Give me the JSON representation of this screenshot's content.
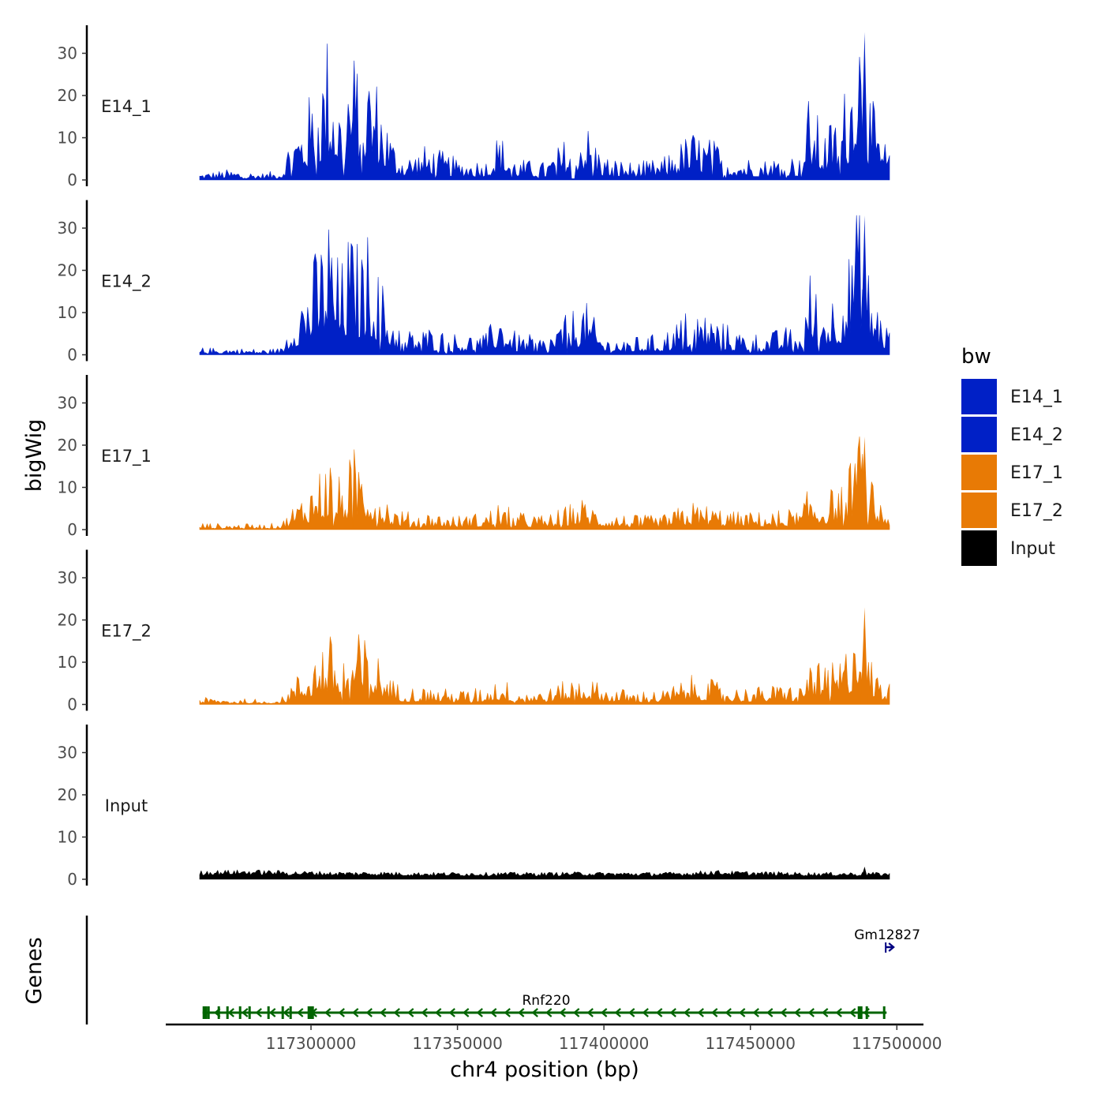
{
  "chart_data": {
    "type": "area",
    "x_axis": {
      "label": "chr4 position (bp)",
      "range": [
        117262000,
        117497500
      ],
      "ticks": [
        117300000,
        117350000,
        117400000,
        117450000,
        117500000
      ],
      "tick_labels": [
        "117300000",
        "117350000",
        "117400000",
        "117450000",
        "117500000"
      ]
    },
    "y_axis": {
      "label": "bigWig",
      "range": [
        0,
        36
      ],
      "ticks": [
        0,
        10,
        20,
        30
      ],
      "tick_labels": [
        "0",
        "10",
        "20",
        "30"
      ]
    },
    "grid": false,
    "legend": {
      "title": "bw",
      "position": "right",
      "entries": [
        {
          "label": "E14_1",
          "color": "#0020C6"
        },
        {
          "label": "E14_2",
          "color": "#0020C6"
        },
        {
          "label": "E17_1",
          "color": "#E87A05"
        },
        {
          "label": "E17_2",
          "color": "#E87A05"
        },
        {
          "label": "Input",
          "color": "#000000"
        }
      ]
    },
    "x_profile": [
      117262000,
      117272000,
      117284000,
      117290000,
      117293000,
      117297000,
      117303000,
      117306000,
      117310000,
      117313000,
      117317000,
      117320000,
      117323000,
      117328000,
      117332000,
      117340000,
      117350000,
      117360000,
      117364000,
      117370000,
      117380000,
      117393000,
      117400000,
      117410000,
      117420000,
      117430000,
      117436000,
      117445000,
      117455000,
      117463000,
      117467000,
      117470000,
      117475000,
      117480000,
      117484000,
      117486000,
      117488000,
      117490000,
      117494000,
      117497500
    ],
    "series": [
      {
        "name": "E14_1",
        "color": "#0020C6",
        "max": 35,
        "values": [
          1,
          1.5,
          1,
          1.5,
          7,
          9,
          16,
          22,
          12,
          19,
          17,
          18,
          14,
          6,
          3.5,
          5,
          3,
          3,
          7,
          3,
          2.5,
          9,
          3.5,
          2.5,
          3,
          7,
          6,
          3.5,
          3,
          4,
          3,
          12,
          7,
          10,
          16,
          31,
          24,
          14,
          7,
          4
        ]
      },
      {
        "name": "E14_2",
        "color": "#0020C6",
        "max": 33,
        "values": [
          1,
          1,
          0.8,
          1,
          6,
          10,
          16,
          21,
          12,
          18,
          15,
          18,
          12,
          6,
          3.5,
          4,
          3,
          3,
          7,
          3,
          2.5,
          8,
          2.5,
          2.5,
          3,
          7,
          6,
          3.5,
          3,
          4,
          3,
          12,
          8,
          10,
          15,
          28,
          24,
          13,
          7,
          4
        ]
      },
      {
        "name": "E17_1",
        "color": "#E87A05",
        "max": 22,
        "values": [
          1,
          0.8,
          0.8,
          1,
          3,
          5,
          9,
          11,
          7,
          10,
          13,
          9,
          7,
          3.5,
          2.5,
          2.5,
          2,
          2.5,
          4,
          2.5,
          2,
          4.5,
          2.5,
          2,
          2,
          4,
          3.5,
          2.5,
          2.5,
          3,
          2.5,
          6,
          5,
          6.5,
          9,
          18,
          14,
          8,
          4.5,
          3
        ]
      },
      {
        "name": "E17_2",
        "color": "#E87A05",
        "max": 23,
        "values": [
          1,
          0.8,
          0.8,
          1,
          3,
          5,
          9,
          10,
          7,
          9,
          10,
          9,
          7,
          3.5,
          2.5,
          2.5,
          2,
          2.5,
          4,
          2.5,
          2,
          4.5,
          2.5,
          2,
          2,
          4,
          3.5,
          2.5,
          2.5,
          3,
          2.5,
          7,
          5,
          6.5,
          9,
          19,
          14,
          8,
          4.5,
          3
        ]
      },
      {
        "name": "Input",
        "color": "#000000",
        "max": 3,
        "values": [
          1.5,
          1.6,
          1.6,
          1.5,
          1.4,
          1.4,
          1.4,
          1.3,
          1.3,
          1.3,
          1.3,
          1.3,
          1.3,
          1.3,
          1.2,
          1.2,
          1.2,
          1.2,
          1.2,
          1.2,
          1.2,
          1.3,
          1.2,
          1.2,
          1.2,
          1.3,
          1.6,
          1.4,
          1.3,
          1.3,
          1.2,
          1.2,
          1.2,
          1.2,
          1.2,
          1.2,
          1.2,
          1.2,
          1.2,
          1.2
        ]
      }
    ],
    "genes_track": {
      "label": "Genes",
      "genes": [
        {
          "name": "Rnf220",
          "start": 117263000,
          "end": 117496500,
          "strand": "-",
          "color": "#006400"
        },
        {
          "name": "Gm12827",
          "start": 117496200,
          "end": 117498500,
          "strand": "+",
          "color": "#000080"
        }
      ]
    }
  }
}
